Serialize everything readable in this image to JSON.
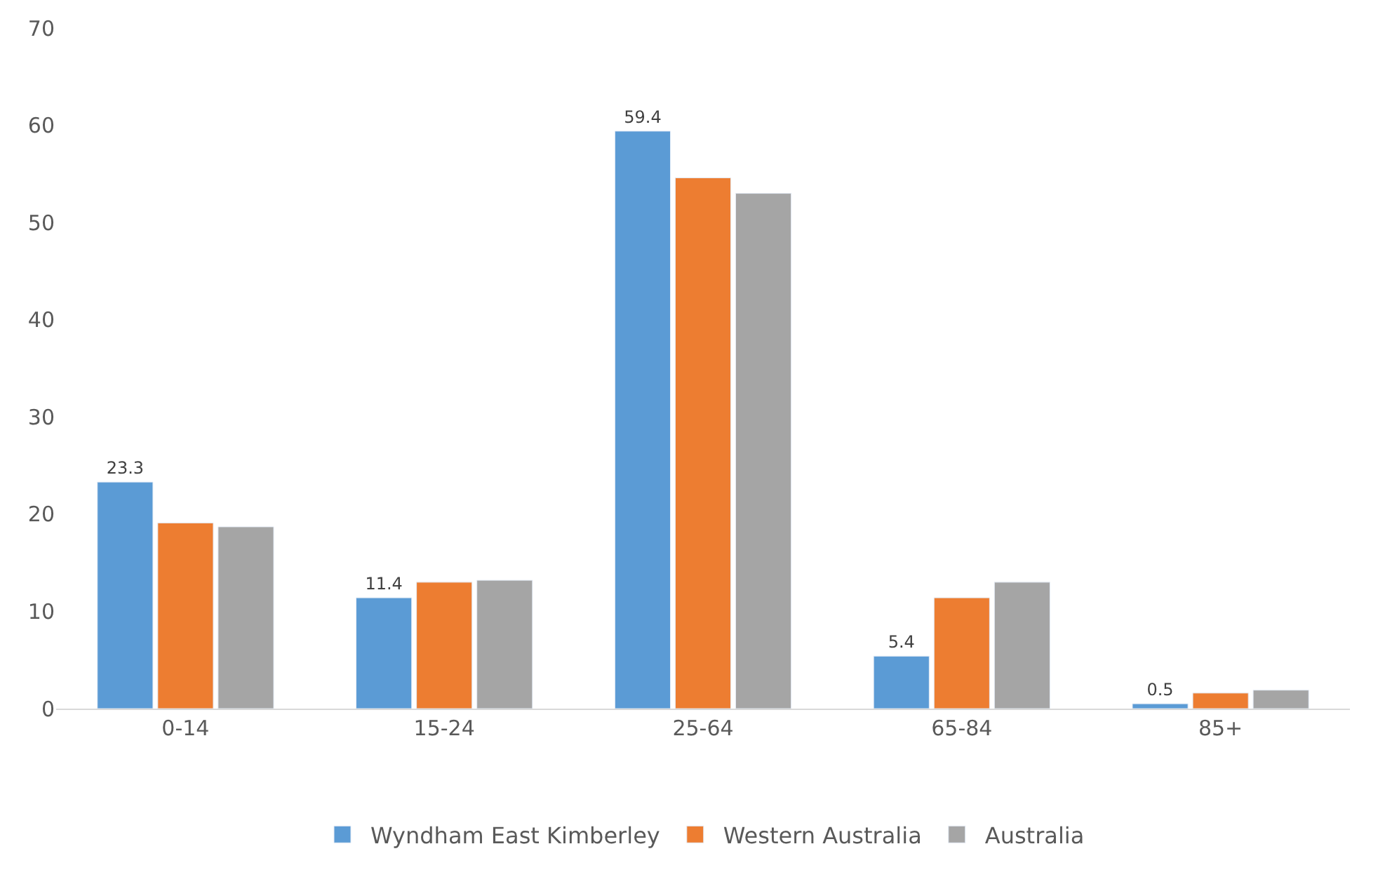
{
  "chart_data": {
    "type": "bar",
    "categories": [
      "0-14",
      "15-24",
      "25-64",
      "65-84",
      "85+"
    ],
    "series": [
      {
        "name": "Wyndham East Kimberley",
        "color": "#5b9bd5",
        "values": [
          23.3,
          11.4,
          59.4,
          5.4,
          0.5
        ],
        "value_labels": [
          "23.3",
          "11.4",
          "59.4",
          "5.4",
          "0.5"
        ]
      },
      {
        "name": "Western Australia",
        "color": "#ed7d31",
        "values": [
          19.1,
          13.0,
          54.6,
          11.4,
          1.6
        ]
      },
      {
        "name": "Australia",
        "color": "#a5a5a5",
        "values": [
          18.7,
          13.2,
          53.0,
          13.0,
          1.9
        ]
      }
    ],
    "ylim": [
      0,
      70
    ],
    "yticks": [
      0,
      10,
      20,
      30,
      40,
      50,
      60,
      70
    ],
    "grid": false,
    "legend": "bottom"
  }
}
